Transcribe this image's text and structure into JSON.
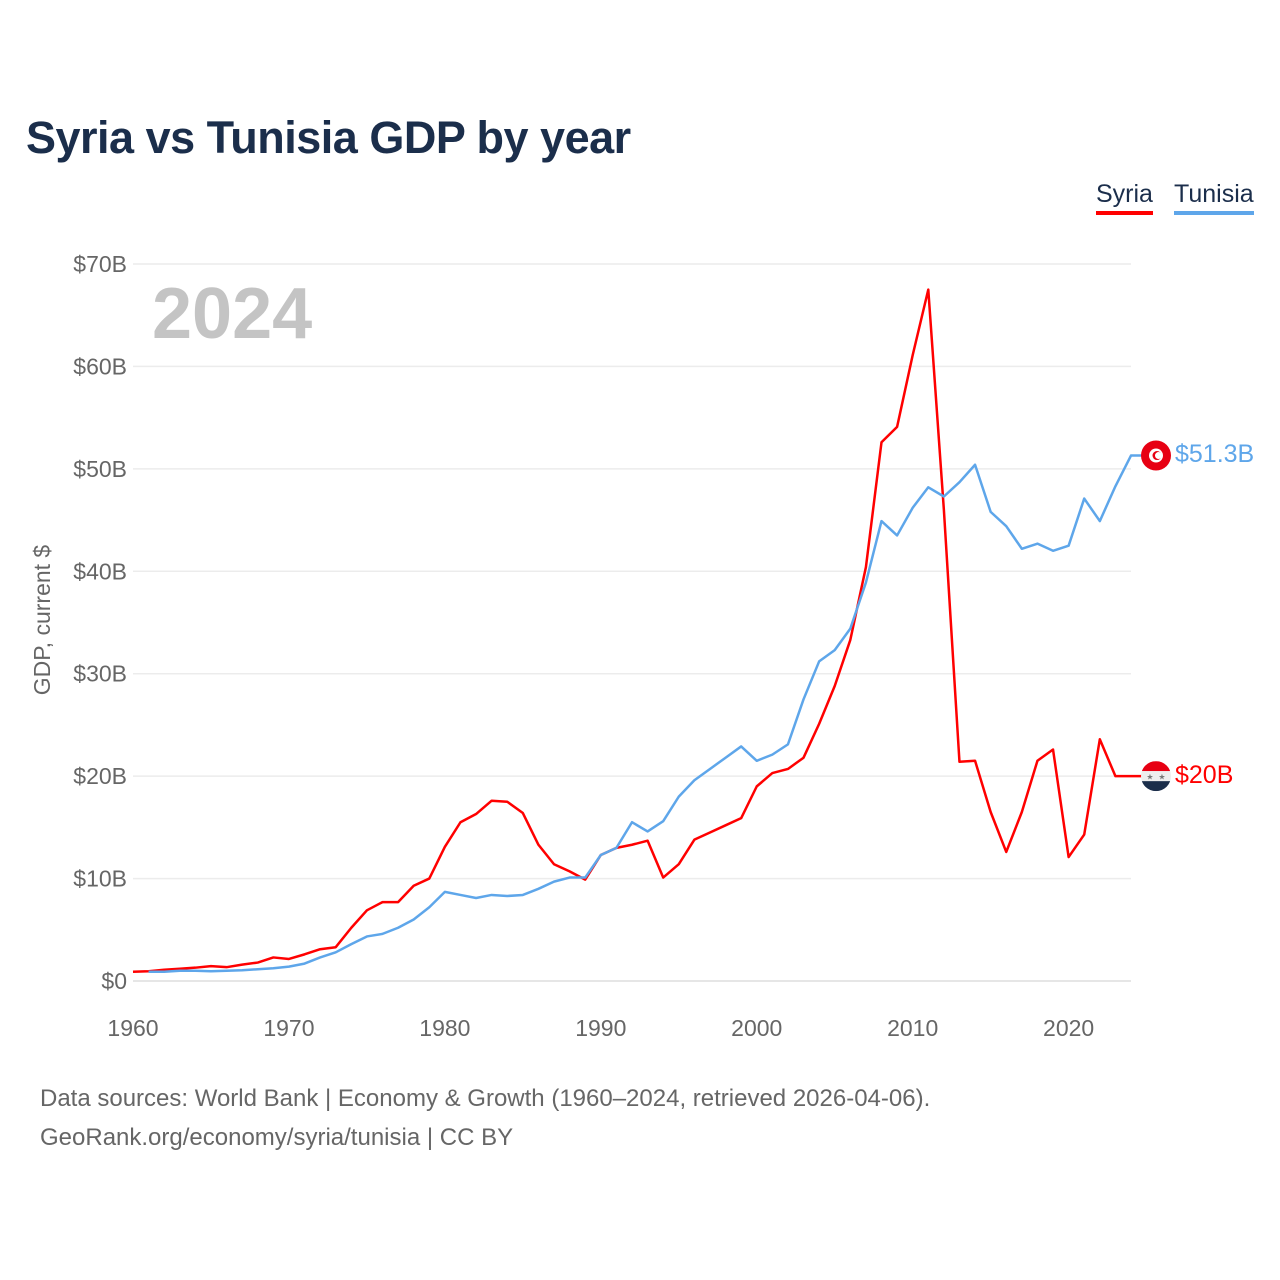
{
  "title": "Syria vs Tunisia GDP by year",
  "legend": [
    "Syria",
    "Tunisia"
  ],
  "year_label": "2024",
  "end_labels": {
    "syria": "$20B",
    "tunisia": "$51.3B"
  },
  "footer": {
    "line1": "Data sources: World Bank | Economy & Growth (1960–2024, retrieved 2026-04-06).",
    "line2": "GeoRank.org/economy/syria/tunisia | CC BY"
  },
  "colors": {
    "syria": "#ff0000",
    "tunisia": "#5ea6ea",
    "title": "#1b2e4b"
  },
  "chart_data": {
    "type": "line",
    "title": "Syria vs Tunisia GDP by year",
    "xlabel": "",
    "ylabel": "GDP, current $",
    "xlim": [
      1960,
      2024
    ],
    "ylim": [
      0,
      70
    ],
    "x_ticks": [
      "1960",
      "1970",
      "1980",
      "1990",
      "2000",
      "2010",
      "2020"
    ],
    "y_ticks": [
      "$0",
      "$10B",
      "$20B",
      "$30B",
      "$40B",
      "$50B",
      "$60B",
      "$70B"
    ],
    "grid": true,
    "legend_position": "top-right",
    "series": [
      {
        "name": "Syria",
        "start_year": 1960,
        "unit": "billion USD",
        "values": [
          0.9,
          0.95,
          1.1,
          1.2,
          1.3,
          1.45,
          1.35,
          1.6,
          1.8,
          2.3,
          2.15,
          2.6,
          3.1,
          3.3,
          5.2,
          6.9,
          7.7,
          7.7,
          9.3,
          10.0,
          13.1,
          15.5,
          16.3,
          17.6,
          17.5,
          16.4,
          13.3,
          11.4,
          10.7,
          9.9,
          12.3,
          13.0,
          13.3,
          13.7,
          10.1,
          11.4,
          13.8,
          14.5,
          15.2,
          15.9,
          19.0,
          20.3,
          20.7,
          21.8,
          25.1,
          28.8,
          33.3,
          40.4,
          52.6,
          54.1,
          61.1,
          67.5,
          46.0,
          21.4,
          21.5,
          16.5,
          12.6,
          16.5,
          21.5,
          22.6,
          12.1,
          14.3,
          23.6,
          20.0,
          20.0
        ]
      },
      {
        "name": "Tunisia",
        "start_year": 1961,
        "unit": "billion USD",
        "values": [
          0.9,
          0.9,
          1.0,
          1.0,
          0.95,
          1.0,
          1.05,
          1.15,
          1.25,
          1.4,
          1.7,
          2.3,
          2.8,
          3.6,
          4.35,
          4.6,
          5.2,
          6.0,
          7.2,
          8.7,
          8.4,
          8.1,
          8.4,
          8.3,
          8.4,
          9.0,
          9.7,
          10.1,
          10.1,
          12.3,
          13.0,
          15.5,
          14.6,
          15.6,
          18.0,
          19.6,
          20.7,
          21.8,
          22.9,
          21.5,
          22.1,
          23.1,
          27.5,
          31.2,
          32.3,
          34.4,
          38.9,
          44.9,
          43.5,
          46.2,
          48.2,
          47.3,
          48.7,
          50.4,
          45.8,
          44.4,
          42.2,
          42.7,
          42.0,
          42.5,
          47.1,
          44.9,
          48.3,
          51.3
        ]
      }
    ]
  }
}
